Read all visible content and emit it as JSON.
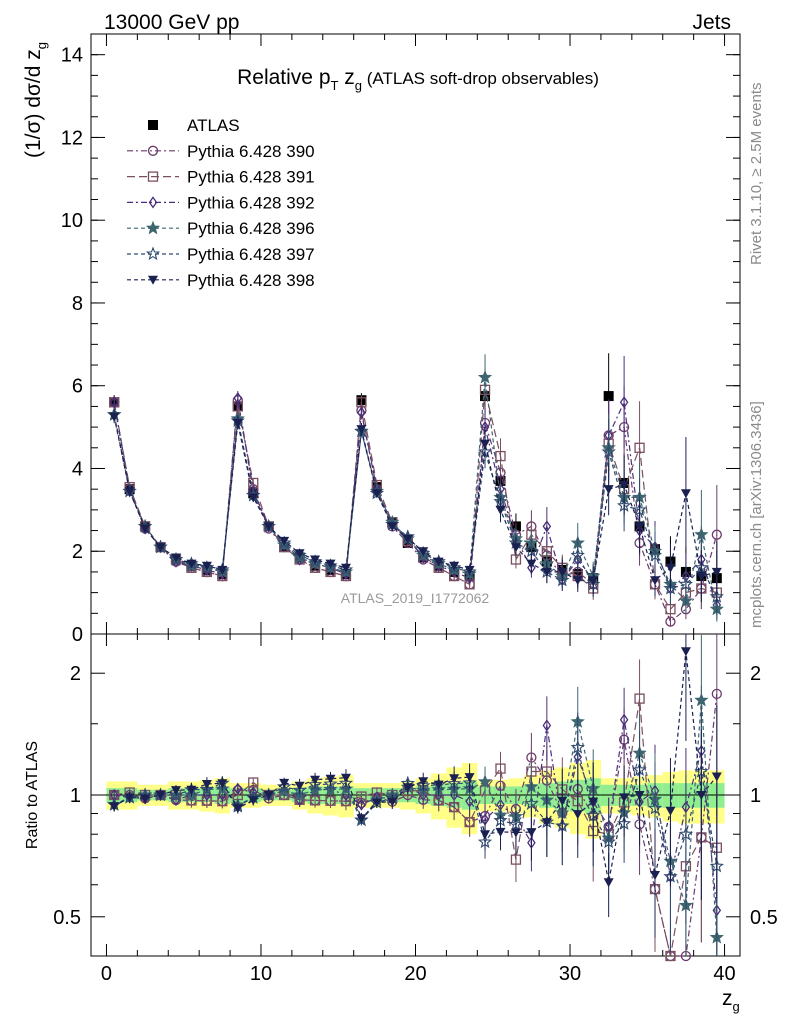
{
  "header": {
    "left": "13000 GeV pp",
    "right": "Jets"
  },
  "chart_data": {
    "type": "scatter",
    "title_prefix": "Relative p",
    "title_sub": "T",
    "title_mid": " z",
    "title_sub2": "g",
    "title_suffix": " (ATLAS soft-drop observables)",
    "ylabel_main": "(1/σ) dσ/d z",
    "ylabel_main_sub": "g",
    "ylabel_ratio": "Ratio to ATLAS",
    "xlabel": "z",
    "xlabel_sub": "g",
    "xlim": [
      -1,
      41
    ],
    "ylim_main": [
      0,
      14.5
    ],
    "ylim_ratio": [
      0.4,
      2.5
    ],
    "main_yticks": [
      "0",
      "2",
      "4",
      "6",
      "8",
      "10",
      "12",
      "14"
    ],
    "ratio_yticks": [
      "0.5",
      "1",
      "2"
    ],
    "xticks": [
      "0",
      "10",
      "20",
      "30",
      "40"
    ],
    "x": [
      0.5,
      1.5,
      2.5,
      3.5,
      4.5,
      5.5,
      6.5,
      7.5,
      8.5,
      9.5,
      10.5,
      11.5,
      12.5,
      13.5,
      14.5,
      15.5,
      16.5,
      17.5,
      18.5,
      19.5,
      20.5,
      21.5,
      22.5,
      23.5,
      24.5,
      25.5,
      26.5,
      27.5,
      28.5,
      29.5,
      30.5,
      31.5,
      32.5,
      33.5,
      34.5,
      35.5,
      36.5,
      37.5,
      38.5,
      39.5
    ],
    "series": [
      {
        "name": "ATLAS",
        "values": [
          5.6,
          3.5,
          2.6,
          2.1,
          1.8,
          1.65,
          1.55,
          1.45,
          5.5,
          3.4,
          2.6,
          2.1,
          1.85,
          1.65,
          1.55,
          1.45,
          5.65,
          3.55,
          2.7,
          2.2,
          1.85,
          1.65,
          1.5,
          1.4,
          5.75,
          3.7,
          2.6,
          2.1,
          1.75,
          1.55,
          1.45,
          1.35,
          5.75,
          3.65,
          2.6,
          2.05,
          1.75,
          1.5,
          1.4,
          1.35
        ]
      },
      {
        "name": "Pythia 6.428 390",
        "values": [
          5.6,
          3.5,
          2.55,
          2.1,
          1.75,
          1.6,
          1.5,
          1.4,
          5.65,
          3.5,
          2.55,
          2.1,
          1.8,
          1.6,
          1.5,
          1.4,
          5.4,
          3.5,
          2.6,
          2.2,
          1.8,
          1.6,
          1.4,
          1.2,
          5.1,
          3.9,
          2.4,
          2.6,
          1.9,
          1.4,
          1.5,
          1.2,
          4.8,
          5.0,
          2.2,
          1.2,
          0.3,
          0.6,
          1.1,
          2.4
        ]
      },
      {
        "name": "Pythia 6.428 391",
        "values": [
          5.6,
          3.55,
          2.6,
          2.1,
          1.8,
          1.6,
          1.5,
          1.4,
          5.5,
          3.65,
          2.6,
          2.1,
          1.8,
          1.6,
          1.5,
          1.4,
          5.6,
          3.6,
          2.7,
          2.25,
          1.9,
          1.6,
          1.4,
          1.2,
          5.9,
          4.3,
          1.8,
          2.4,
          2.0,
          1.6,
          1.4,
          1.1,
          4.6,
          3.5,
          4.5,
          1.2,
          0.6,
          1.0,
          1.1,
          1.0
        ]
      },
      {
        "name": "Pythia 6.428 392",
        "values": [
          5.6,
          3.45,
          2.55,
          2.1,
          1.75,
          1.65,
          1.55,
          1.45,
          5.7,
          3.45,
          2.6,
          2.15,
          1.8,
          1.7,
          1.6,
          1.45,
          5.35,
          3.5,
          2.65,
          2.3,
          1.85,
          1.65,
          1.5,
          1.35,
          5.0,
          3.5,
          2.3,
          1.6,
          2.6,
          1.3,
          1.8,
          1.3,
          4.8,
          5.6,
          2.5,
          2.1,
          1.1,
          1.4,
          1.8,
          0.7
        ]
      },
      {
        "name": "Pythia 6.428 396",
        "values": [
          5.3,
          3.45,
          2.6,
          2.1,
          1.8,
          1.65,
          1.6,
          1.5,
          5.2,
          3.35,
          2.6,
          2.15,
          1.85,
          1.7,
          1.6,
          1.5,
          4.9,
          3.45,
          2.7,
          2.3,
          1.9,
          1.7,
          1.55,
          1.45,
          6.2,
          3.3,
          2.3,
          2.2,
          1.7,
          1.4,
          2.2,
          1.4,
          4.5,
          3.3,
          3.3,
          2.0,
          1.2,
          0.8,
          2.4,
          0.6
        ]
      },
      {
        "name": "Pythia 6.428 397",
        "values": [
          5.3,
          3.45,
          2.6,
          2.1,
          1.8,
          1.7,
          1.6,
          1.55,
          5.15,
          3.35,
          2.6,
          2.2,
          1.9,
          1.75,
          1.65,
          1.55,
          4.9,
          3.4,
          2.65,
          2.35,
          1.95,
          1.75,
          1.6,
          1.5,
          4.4,
          3.2,
          2.2,
          2.0,
          1.5,
          1.3,
          1.9,
          1.2,
          4.4,
          3.1,
          3.0,
          1.9,
          1.1,
          1.2,
          1.6,
          0.9
        ]
      },
      {
        "name": "Pythia 6.428 398",
        "values": [
          5.25,
          3.45,
          2.55,
          2.1,
          1.85,
          1.7,
          1.65,
          1.55,
          5.1,
          3.3,
          2.6,
          2.25,
          1.95,
          1.8,
          1.7,
          1.6,
          4.95,
          3.4,
          2.6,
          2.3,
          2.0,
          1.75,
          1.65,
          1.55,
          4.6,
          3.0,
          2.1,
          1.7,
          1.5,
          1.5,
          1.3,
          1.3,
          3.5,
          3.6,
          2.6,
          1.3,
          1.6,
          3.4,
          1.4,
          1.5
        ]
      }
    ],
    "ratio_band_inner": [
      0.04,
      0.04,
      0.03,
      0.03,
      0.04,
      0.04,
      0.04,
      0.05,
      0.04,
      0.04,
      0.03,
      0.03,
      0.04,
      0.05,
      0.05,
      0.05,
      0.04,
      0.04,
      0.04,
      0.04,
      0.05,
      0.06,
      0.07,
      0.08,
      0.05,
      0.05,
      0.05,
      0.06,
      0.07,
      0.08,
      0.09,
      0.1,
      0.06,
      0.06,
      0.06,
      0.07,
      0.07,
      0.07,
      0.07,
      0.07
    ],
    "ratio_band_outer": [
      0.08,
      0.08,
      0.06,
      0.06,
      0.08,
      0.08,
      0.09,
      0.1,
      0.07,
      0.07,
      0.06,
      0.06,
      0.08,
      0.1,
      0.11,
      0.12,
      0.07,
      0.07,
      0.07,
      0.08,
      0.1,
      0.13,
      0.17,
      0.2,
      0.09,
      0.09,
      0.1,
      0.12,
      0.15,
      0.17,
      0.2,
      0.22,
      0.1,
      0.1,
      0.11,
      0.12,
      0.14,
      0.15,
      0.15,
      0.15
    ],
    "rel_err": [
      0.03,
      0.03,
      0.03,
      0.03,
      0.03,
      0.04,
      0.04,
      0.04,
      0.03,
      0.03,
      0.03,
      0.03,
      0.04,
      0.04,
      0.04,
      0.05,
      0.03,
      0.03,
      0.04,
      0.04,
      0.05,
      0.06,
      0.07,
      0.08,
      0.09,
      0.1,
      0.12,
      0.15,
      0.18,
      0.2,
      0.22,
      0.25,
      0.18,
      0.2,
      0.25,
      0.3,
      0.35,
      0.4,
      0.45,
      0.5
    ],
    "annotation": "ATLAS_2019_I1772062"
  },
  "side": {
    "rivet": "Rivet 3.1.10, ≥ 2.5M events",
    "mcplots": "mcplots.cern.ch [arXiv:1306.3436]"
  },
  "colors": {
    "atlas": "#000000",
    "s390": "#6b3a6b",
    "s391": "#7a5060",
    "s392": "#4a2f7a",
    "s396": "#3d6670",
    "s397": "#2f4a6e",
    "s398": "#1a2050",
    "band_inner": "#90ee90",
    "band_outer": "#ffff88"
  }
}
